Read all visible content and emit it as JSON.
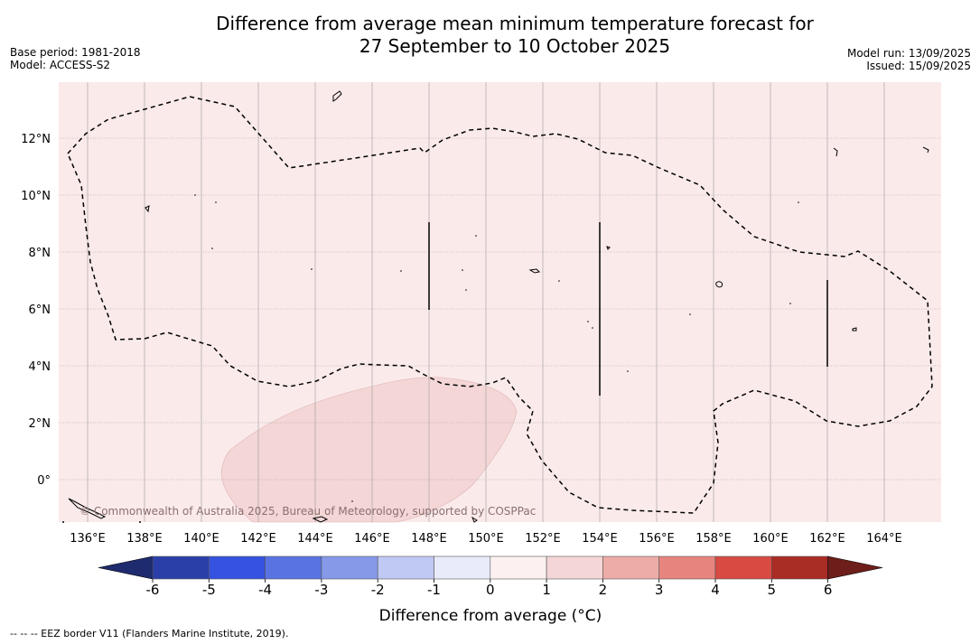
{
  "title_line1": "Difference from average mean minimum temperature forecast for",
  "title_line2": "27 September to 10 October 2025",
  "base_period": "Base period: 1981-2018",
  "model": "Model: ACCESS-S2",
  "model_run": "Model run: 13/09/2025",
  "issued": "Issued: 15/09/2025",
  "copyright": "© Commonwealth of Australia 2025, Bureau of Meteorology, supported by COSPPac",
  "footnote": "--  --  -- EEZ border V11 (Flanders Marine Institute, 2019).",
  "longitude_labels": [
    "136°E",
    "138°E",
    "140°E",
    "142°E",
    "144°E",
    "146°E",
    "148°E",
    "150°E",
    "152°E",
    "154°E",
    "156°E",
    "158°E",
    "160°E",
    "162°E",
    "164°E"
  ],
  "latitude_labels": [
    "12°N",
    "10°N",
    "8°N",
    "6°N",
    "4°N",
    "2°N",
    "0°"
  ],
  "colorbar": {
    "label": "Difference from average (°C)",
    "ticks": [
      "-6",
      "-5",
      "-4",
      "-3",
      "-2",
      "-1",
      "0",
      "1",
      "2",
      "3",
      "4",
      "5",
      "6"
    ],
    "colors": [
      "#2b3fa8",
      "#3652e0",
      "#5a73e3",
      "#8698e8",
      "#c0c8f4",
      "#e9ebfb",
      "#fcf0f0",
      "#f5d6d6",
      "#edaca8",
      "#e6857e",
      "#d84a42",
      "#a92c25"
    ],
    "under_color": "#1e2b6e",
    "over_color": "#6e1e1a"
  },
  "map_colors": {
    "background_anomaly": "#fbeaea",
    "warm_patch": "#f4d6d6"
  }
}
